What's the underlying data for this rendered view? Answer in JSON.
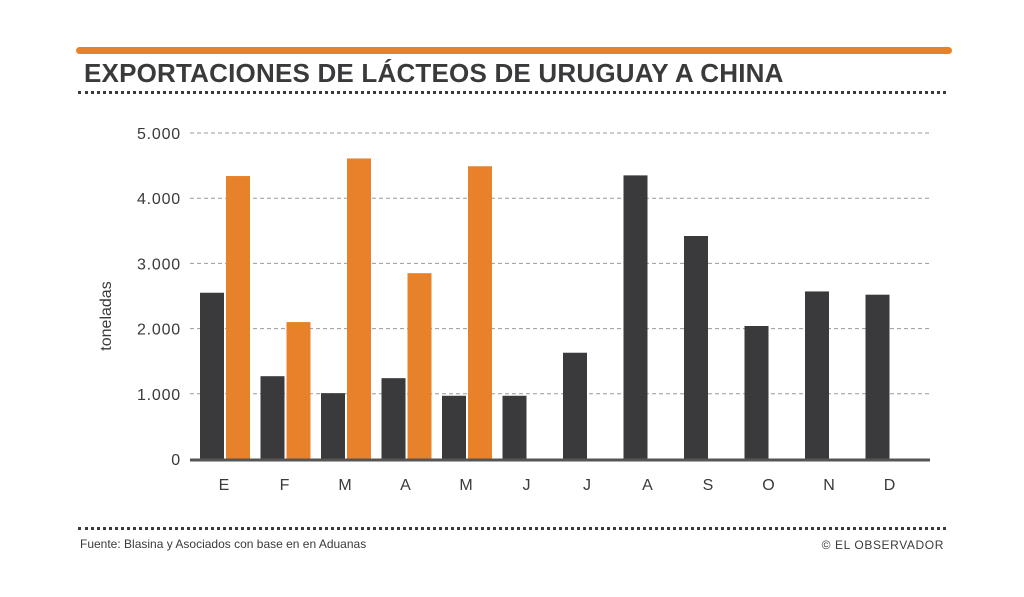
{
  "header": {
    "title": "EXPORTACIONES DE LÁCTEOS DE URUGUAY A CHINA"
  },
  "footer": {
    "source": "Fuente: Blasina y Asociados con base en en Aduanas",
    "credit": "© EL OBSERVADOR"
  },
  "colors": {
    "accent": "#e8822a",
    "dark_series": "#3a3a3c",
    "gridline": "#9a9a9a",
    "axis": "#555555"
  },
  "chart_data": {
    "type": "bar",
    "title": "EXPORTACIONES DE LÁCTEOS DE URUGUAY A CHINA",
    "xlabel": "",
    "ylabel": "toneladas",
    "categories": [
      "E",
      "F",
      "M",
      "A",
      "M",
      "J",
      "J",
      "A",
      "S",
      "O",
      "N",
      "D"
    ],
    "ylim": [
      0,
      5000
    ],
    "yticks": [
      0,
      1000,
      2000,
      3000,
      4000,
      5000
    ],
    "ytick_labels": [
      "0",
      "1.000",
      "2.000",
      "3.000",
      "4.000",
      "5.000"
    ],
    "grid": true,
    "series": [
      {
        "name": "dark",
        "color": "#3a3a3c",
        "values": [
          2550,
          1270,
          1010,
          1240,
          970,
          970,
          1630,
          4350,
          3420,
          2040,
          2570,
          2520
        ]
      },
      {
        "name": "orange",
        "color": "#e8822a",
        "values": [
          4340,
          2100,
          4610,
          2850,
          4490,
          null,
          null,
          null,
          null,
          null,
          null,
          null
        ]
      }
    ]
  }
}
